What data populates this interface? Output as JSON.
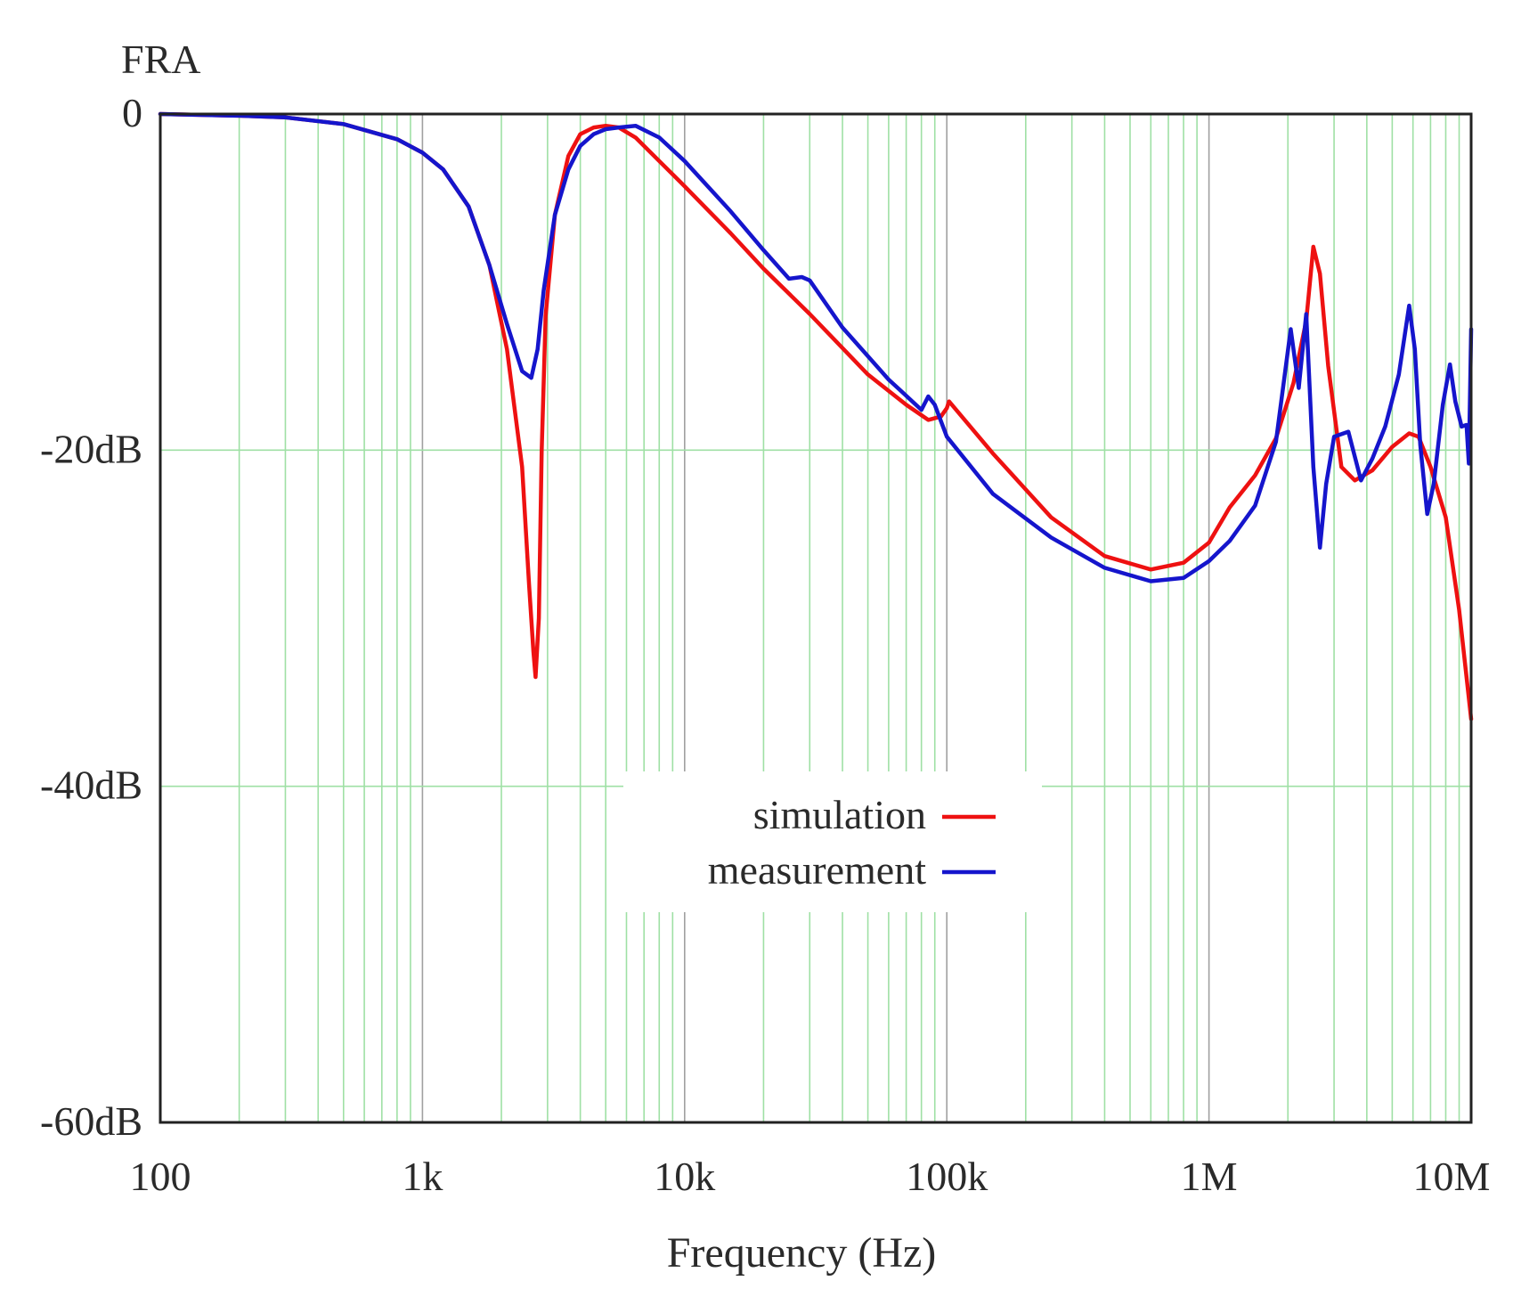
{
  "chart_data": {
    "type": "line",
    "title": "FRA",
    "xlabel": "Frequency (Hz)",
    "ylabel": "",
    "xscale": "log",
    "xlim": [
      100,
      10000000
    ],
    "ylim": [
      -60,
      0
    ],
    "x_ticks": [
      {
        "value": 100,
        "label": "100"
      },
      {
        "value": 1000,
        "label": "1k"
      },
      {
        "value": 10000,
        "label": "10k"
      },
      {
        "value": 100000,
        "label": "100k"
      },
      {
        "value": 1000000,
        "label": "1M"
      },
      {
        "value": 10000000,
        "label": "10M"
      }
    ],
    "y_ticks": [
      {
        "value": 0,
        "label": "0"
      },
      {
        "value": -20,
        "label": "-20dB"
      },
      {
        "value": -40,
        "label": "-40dB"
      },
      {
        "value": -60,
        "label": "-60dB"
      }
    ],
    "grid": true,
    "legend_position": "center",
    "colors": {
      "grid": "#9fe0a5",
      "axis": "#222222",
      "decade": "#a0a0a0"
    },
    "series": [
      {
        "name": "simulation",
        "color": "#ee1111",
        "x": [
          100,
          200,
          300,
          500,
          800,
          1000,
          1200,
          1500,
          1800,
          2100,
          2400,
          2550,
          2650,
          2700,
          2780,
          2850,
          2950,
          3200,
          3600,
          4000,
          4500,
          5000,
          5600,
          6500,
          8000,
          10000,
          15000,
          20000,
          30000,
          50000,
          70000,
          85000,
          95000,
          100000,
          102000,
          150000,
          250000,
          400000,
          600000,
          800000,
          1000000,
          1200000,
          1500000,
          1800000,
          2100000,
          2350000,
          2500000,
          2650000,
          2850000,
          3200000,
          3600000,
          4200000,
          5000000,
          5800000,
          6300000,
          7000000,
          8000000,
          9000000,
          10000000
        ],
        "values": [
          0,
          -0.1,
          -0.2,
          -0.6,
          -1.5,
          -2.3,
          -3.3,
          -5.5,
          -9,
          -14,
          -21,
          -28,
          -32,
          -33.5,
          -30,
          -20,
          -12,
          -6,
          -2.5,
          -1.2,
          -0.8,
          -0.7,
          -0.8,
          -1.4,
          -2.8,
          -4.3,
          -7.1,
          -9.2,
          -11.9,
          -15.5,
          -17.3,
          -18.2,
          -18,
          -17.5,
          -17.1,
          -20.2,
          -24,
          -26.3,
          -27.1,
          -26.7,
          -25.5,
          -23.4,
          -21.5,
          -19.3,
          -16,
          -12.3,
          -7.9,
          -9.5,
          -15,
          -21,
          -21.8,
          -21.2,
          -19.8,
          -19,
          -19.2,
          -21,
          -24,
          -29.5,
          -36
        ]
      },
      {
        "name": "measurement",
        "color": "#1515cc",
        "x": [
          100,
          200,
          300,
          500,
          800,
          1000,
          1200,
          1500,
          1800,
          2100,
          2400,
          2600,
          2750,
          2900,
          3200,
          3600,
          4000,
          4500,
          5000,
          5600,
          6500,
          8000,
          10000,
          15000,
          20000,
          25000,
          28000,
          30000,
          40000,
          60000,
          80000,
          85000,
          90000,
          100000,
          150000,
          250000,
          400000,
          600000,
          800000,
          1000000,
          1200000,
          1500000,
          1800000,
          2050000,
          2200000,
          2350000,
          2500000,
          2650000,
          2800000,
          3000000,
          3400000,
          3800000,
          4200000,
          4700000,
          5300000,
          5800000,
          6100000,
          6400000,
          6800000,
          7200000,
          7800000,
          8300000,
          8700000,
          9200000,
          9600000,
          9800000,
          10000000
        ],
        "values": [
          0,
          -0.1,
          -0.2,
          -0.6,
          -1.5,
          -2.3,
          -3.3,
          -5.5,
          -9,
          -12.5,
          -15.3,
          -15.7,
          -14,
          -10.5,
          -6,
          -3.3,
          -1.9,
          -1.2,
          -0.9,
          -0.8,
          -0.7,
          -1.4,
          -2.8,
          -5.8,
          -8.1,
          -9.8,
          -9.7,
          -9.9,
          -12.7,
          -15.8,
          -17.6,
          -16.8,
          -17.3,
          -19.2,
          -22.6,
          -25.2,
          -27,
          -27.8,
          -27.6,
          -26.6,
          -25.4,
          -23.3,
          -19.5,
          -12.8,
          -16.3,
          -11.9,
          -21,
          -25.8,
          -22,
          -19.2,
          -18.9,
          -21.8,
          -20.5,
          -18.6,
          -15.5,
          -11.4,
          -14,
          -19.7,
          -23.8,
          -22,
          -17.3,
          -14.9,
          -17.1,
          -18.6,
          -18.5,
          -20.8,
          -12.8
        ]
      }
    ]
  }
}
